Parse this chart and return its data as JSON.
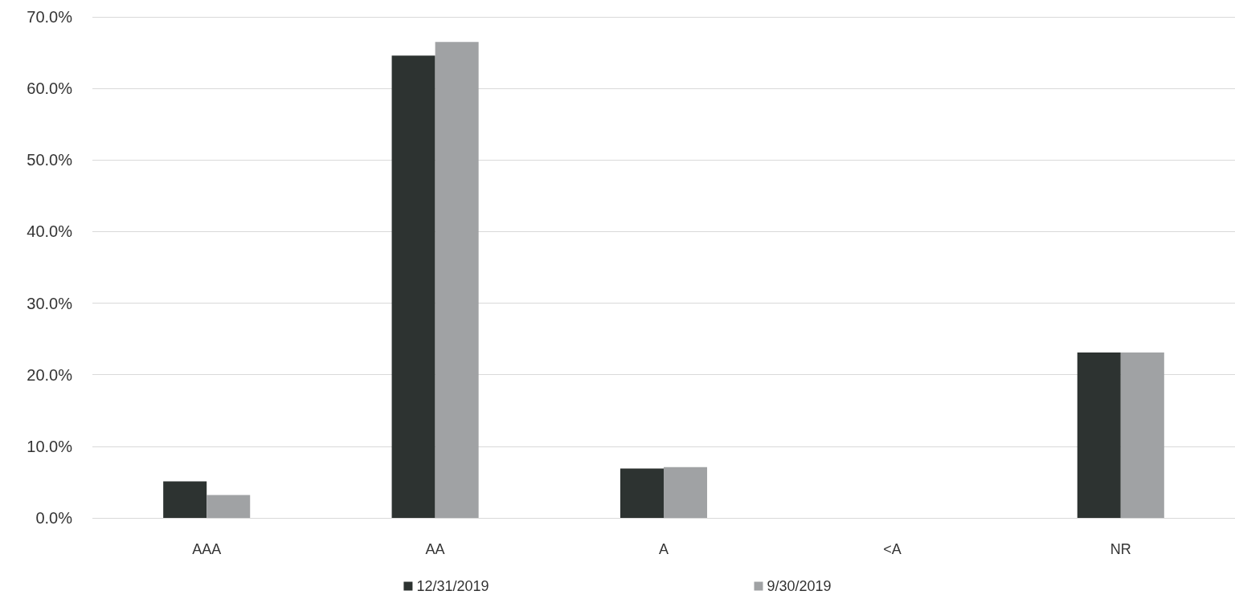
{
  "chart_data": {
    "type": "bar",
    "categories": [
      "AAA",
      "AA",
      "A",
      "<A",
      "NR"
    ],
    "series": [
      {
        "name": "12/31/2019",
        "color": "#2d3331",
        "values": [
          5.1,
          64.6,
          6.9,
          null,
          23.1
        ]
      },
      {
        "name": "9/30/2019",
        "color": "#a0a2a4",
        "values": [
          3.2,
          66.5,
          7.1,
          null,
          23.1
        ]
      }
    ],
    "ylim": [
      0,
      70
    ],
    "yticks": [
      {
        "value": 0,
        "label": "0.0%"
      },
      {
        "value": 10,
        "label": "10.0%"
      },
      {
        "value": 20,
        "label": "20.0%"
      },
      {
        "value": 30,
        "label": "30.0%"
      },
      {
        "value": 40,
        "label": "40.0%"
      },
      {
        "value": 50,
        "label": "50.0%"
      },
      {
        "value": 60,
        "label": "60.0%"
      },
      {
        "value": 70,
        "label": "70.0%"
      }
    ],
    "grid": "y",
    "legend": "bottom"
  }
}
